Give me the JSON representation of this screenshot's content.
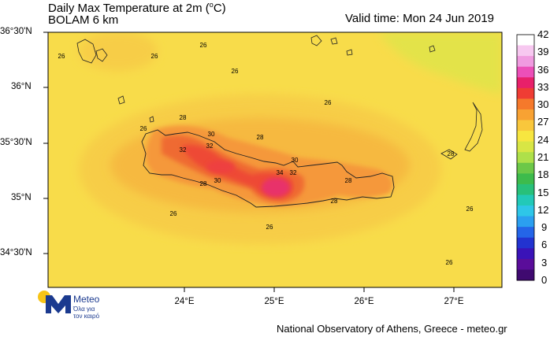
{
  "title": "Daily Max Temperature at 2m (",
  "title_unit": "C)",
  "subtitle": "BOLAM 6 km",
  "valid_time": "Valid time: Mon 24 Jun 2019",
  "lat_labels": [
    "36°30'N",
    "36°N",
    "35°30'N",
    "35°N",
    "34°30'N"
  ],
  "lon_labels": [
    "24°E",
    "25°E",
    "26°E",
    "27°E"
  ],
  "colorbar": {
    "ticks": [
      "42",
      "39",
      "36",
      "33",
      "30",
      "27",
      "24",
      "21",
      "18",
      "15",
      "12",
      "9",
      "6",
      "3",
      "0"
    ],
    "colors": [
      "#ffffff",
      "#f7c8f0",
      "#f09be0",
      "#ec4fb8",
      "#e8206a",
      "#ef3c34",
      "#f5792b",
      "#f8a233",
      "#f9c73c",
      "#f7e640",
      "#d8e645",
      "#aee04a",
      "#6cc848",
      "#3dbb4c",
      "#28c07a",
      "#22c9b8",
      "#2ec6e8",
      "#2b9ff0",
      "#2465e8",
      "#2233d0",
      "#3a13b8",
      "#5a0d9a",
      "#3f0a70"
    ]
  },
  "contour_labels": [
    {
      "text": "26",
      "key": "a"
    },
    {
      "text": "26",
      "key": "b"
    },
    {
      "text": "26",
      "key": "c"
    },
    {
      "text": "26",
      "key": "d"
    },
    {
      "text": "26",
      "key": "e"
    },
    {
      "text": "26",
      "key": "f"
    },
    {
      "text": "28",
      "key": "g"
    },
    {
      "text": "30",
      "key": "h"
    },
    {
      "text": "32",
      "key": "i"
    },
    {
      "text": "32",
      "key": "j"
    },
    {
      "text": "28",
      "key": "k"
    },
    {
      "text": "30",
      "key": "l"
    },
    {
      "text": "34",
      "key": "m"
    },
    {
      "text": "32",
      "key": "n"
    },
    {
      "text": "28",
      "key": "o"
    },
    {
      "text": "30",
      "key": "p"
    },
    {
      "text": "28",
      "key": "q"
    },
    {
      "text": "28",
      "key": "r"
    },
    {
      "text": "26",
      "key": "s"
    },
    {
      "text": "26",
      "key": "t"
    },
    {
      "text": "26",
      "key": "u"
    },
    {
      "text": "26",
      "key": "v"
    },
    {
      "text": "28",
      "key": "w"
    },
    {
      "text": "26",
      "key": "x"
    }
  ],
  "logo": {
    "brand": "Meteo",
    "tagline_1": "Όλα για",
    "tagline_2": "τον καιρό"
  },
  "footer": "National Observatory of Athens, Greece - meteo.gr"
}
